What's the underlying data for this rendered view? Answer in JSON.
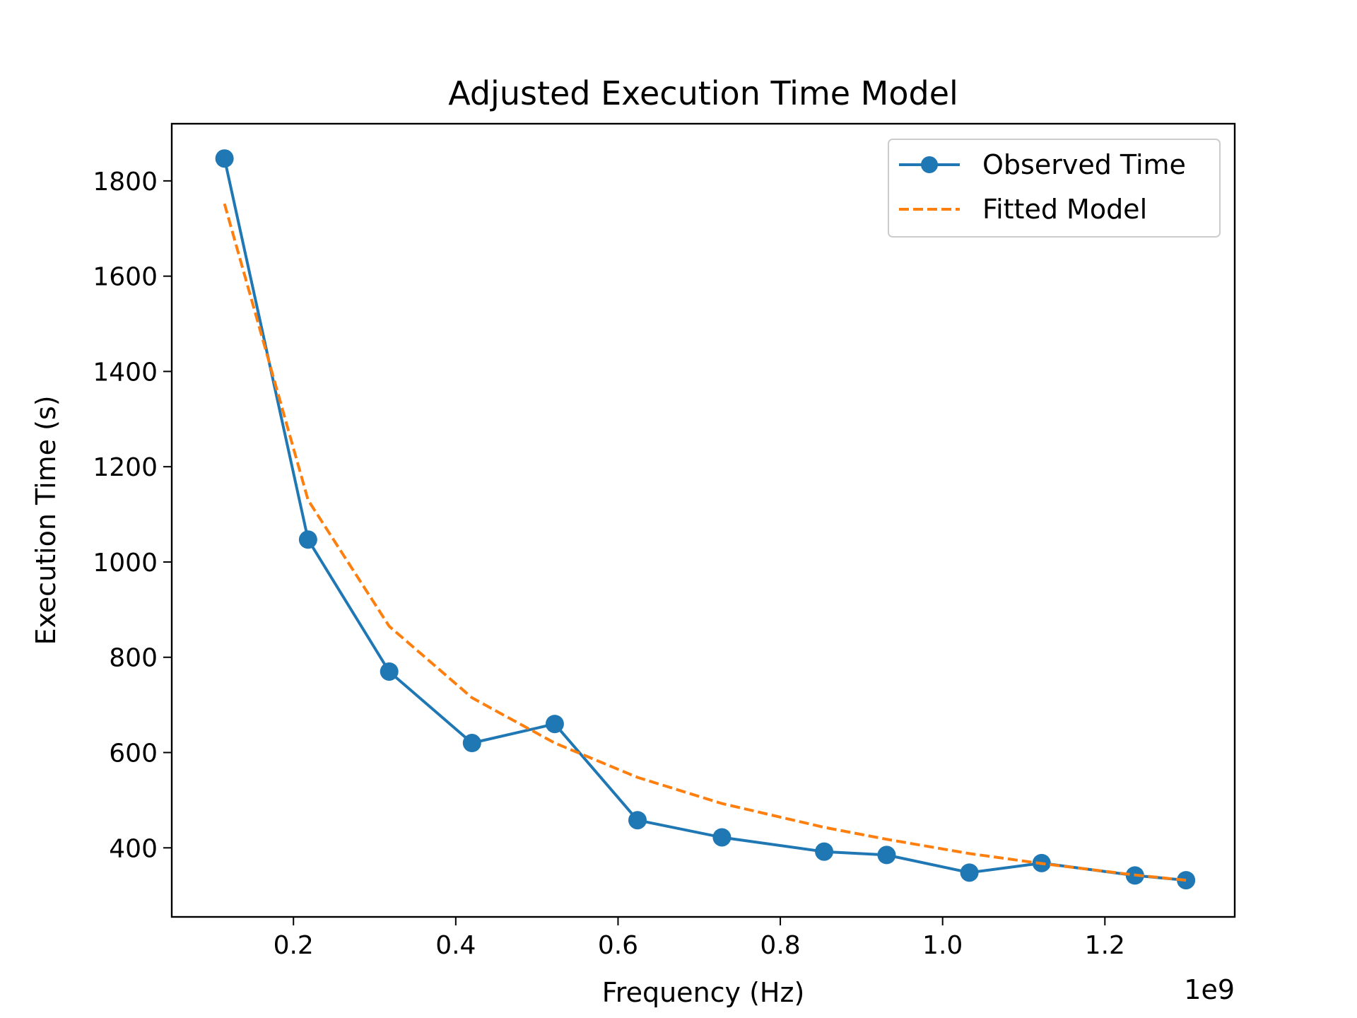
{
  "chart_data": {
    "type": "line",
    "title": "Adjusted Execution Time Model",
    "xlabel": "Frequency (Hz)",
    "ylabel": "Execution Time (s)",
    "x_offset_text": "1e9",
    "xlim": [
      0.05,
      1.36
    ],
    "ylim": [
      255,
      1920
    ],
    "xticks": [
      0.2,
      0.4,
      0.6,
      0.8,
      1.0,
      1.2
    ],
    "xtick_labels": [
      "0.2",
      "0.4",
      "0.6",
      "0.8",
      "1.0",
      "1.2"
    ],
    "yticks": [
      400,
      600,
      800,
      1000,
      1200,
      1400,
      1600,
      1800
    ],
    "ytick_labels": [
      "400",
      "600",
      "800",
      "1000",
      "1200",
      "1400",
      "1600",
      "1800"
    ],
    "grid": false,
    "legend": "top-right",
    "series": [
      {
        "name": "Observed Time",
        "style": "solid-with-markers",
        "color": "#1f77b4",
        "x": [
          0.115,
          0.218,
          0.318,
          0.42,
          0.522,
          0.624,
          0.728,
          0.854,
          0.931,
          1.033,
          1.122,
          1.237,
          1.3
        ],
        "y": [
          1847,
          1047,
          770,
          620,
          660,
          458,
          422,
          392,
          385,
          348,
          368,
          342,
          332
        ]
      },
      {
        "name": "Fitted Model",
        "style": "dashed",
        "color": "#ff7f0e",
        "x": [
          0.115,
          0.218,
          0.318,
          0.42,
          0.522,
          0.624,
          0.728,
          0.854,
          0.931,
          1.033,
          1.122,
          1.237,
          1.3
        ],
        "y": [
          1752,
          1130,
          865,
          715,
          620,
          548,
          493,
          443,
          418,
          388,
          367,
          343,
          332
        ]
      }
    ]
  }
}
